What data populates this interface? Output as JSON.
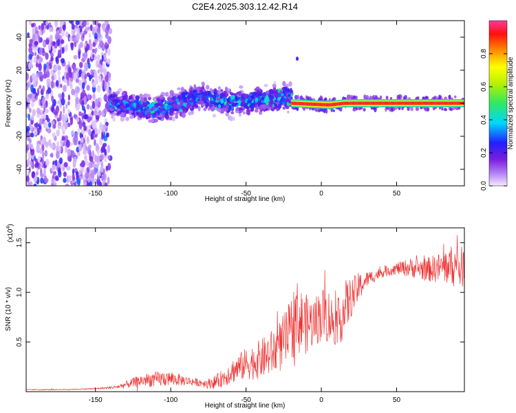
{
  "title": "C2E4.2025.303.12.42.R14",
  "chart_data": [
    {
      "type": "heatmap",
      "title": "C2E4.2025.303.12.42.R14",
      "xlabel": "Height of straight line (km)",
      "ylabel": "Frequency (Hz)",
      "xlim": [
        -196,
        95
      ],
      "ylim": [
        -50,
        50
      ],
      "xticks": [
        -150,
        -100,
        -50,
        0,
        50
      ],
      "xtick_labels": [
        "-150",
        "-100",
        "-50",
        "0",
        "50"
      ],
      "yticks": [
        -40,
        -20,
        0,
        20,
        40
      ],
      "ytick_labels": [
        "-40",
        "-20",
        "0",
        "20",
        "40"
      ],
      "colorbar": {
        "label": "Normalized spectral amplitude",
        "range": [
          0,
          1
        ],
        "ticks": [
          0.0,
          0.2,
          0.4,
          0.6,
          0.8
        ],
        "tick_labels": [
          "0.0",
          "0.2",
          "0.4",
          "0.6",
          "0.8"
        ]
      },
      "regions": [
        {
          "name": "broadband noise",
          "x_range": [
            -196,
            -140
          ],
          "freq_range": [
            -50,
            50
          ],
          "amplitude": 0.15
        },
        {
          "name": "turbulent band",
          "x_range": [
            -140,
            -20
          ],
          "freq_center": [
            [
              -140,
              0
            ],
            [
              -110,
              -4
            ],
            [
              -80,
              4
            ],
            [
              -60,
              0
            ],
            [
              -40,
              2
            ],
            [
              -20,
              4
            ]
          ],
          "half_width": 7,
          "amplitude": 0.35
        },
        {
          "name": "coherent line",
          "x_range": [
            -20,
            95
          ],
          "freq_center": [
            [
              -20,
              0
            ],
            [
              5,
              -1
            ],
            [
              15,
              0
            ],
            [
              95,
              0
            ]
          ],
          "half_width": 1.5,
          "amplitude": 0.95
        }
      ]
    },
    {
      "type": "line",
      "xlabel": "Height of straight line (km)",
      "ylabel": "SNR (10 * v/v)",
      "scale_label": "(x10",
      "scale_exponent": "4",
      "xlim": [
        -196,
        95
      ],
      "ylim": [
        0,
        1.65
      ],
      "xticks": [
        -150,
        -100,
        -50,
        0,
        50
      ],
      "xtick_labels": [
        "-150",
        "-100",
        "-50",
        "0",
        "50"
      ],
      "yticks": [
        0.5,
        1.0,
        1.5
      ],
      "ytick_labels": [
        "0.5",
        "1.0",
        "1.5"
      ],
      "line_color": "#ee3333",
      "series": [
        {
          "name": "SNR",
          "x": [
            -196,
            -180,
            -160,
            -150,
            -140,
            -135,
            -130,
            -125,
            -120,
            -115,
            -110,
            -105,
            -100,
            -95,
            -90,
            -85,
            -80,
            -75,
            -70,
            -65,
            -60,
            -55,
            -50,
            -45,
            -40,
            -35,
            -30,
            -25,
            -20,
            -17,
            -15,
            -10,
            -5,
            0,
            5,
            10,
            15,
            20,
            25,
            30,
            40,
            50,
            60,
            70,
            80,
            85,
            90,
            95
          ],
          "values": [
            0.02,
            0.02,
            0.025,
            0.03,
            0.04,
            0.05,
            0.07,
            0.09,
            0.11,
            0.12,
            0.12,
            0.13,
            0.13,
            0.12,
            0.11,
            0.1,
            0.09,
            0.08,
            0.1,
            0.14,
            0.2,
            0.24,
            0.28,
            0.3,
            0.33,
            0.37,
            0.42,
            0.5,
            0.62,
            0.78,
            0.72,
            0.68,
            0.7,
            0.78,
            0.76,
            0.66,
            0.82,
            0.95,
            1.05,
            1.13,
            1.2,
            1.24,
            1.25,
            1.23,
            1.25,
            1.27,
            1.26,
            1.25
          ],
          "noise": [
            0.005,
            0.005,
            0.005,
            0.008,
            0.015,
            0.02,
            0.035,
            0.05,
            0.06,
            0.07,
            0.08,
            0.08,
            0.07,
            0.06,
            0.05,
            0.04,
            0.04,
            0.05,
            0.07,
            0.09,
            0.12,
            0.14,
            0.16,
            0.18,
            0.2,
            0.22,
            0.25,
            0.28,
            0.32,
            0.4,
            0.35,
            0.3,
            0.25,
            0.28,
            0.28,
            0.2,
            0.3,
            0.2,
            0.15,
            0.08,
            0.05,
            0.06,
            0.1,
            0.12,
            0.16,
            0.2,
            0.22,
            0.2
          ]
        }
      ]
    }
  ]
}
